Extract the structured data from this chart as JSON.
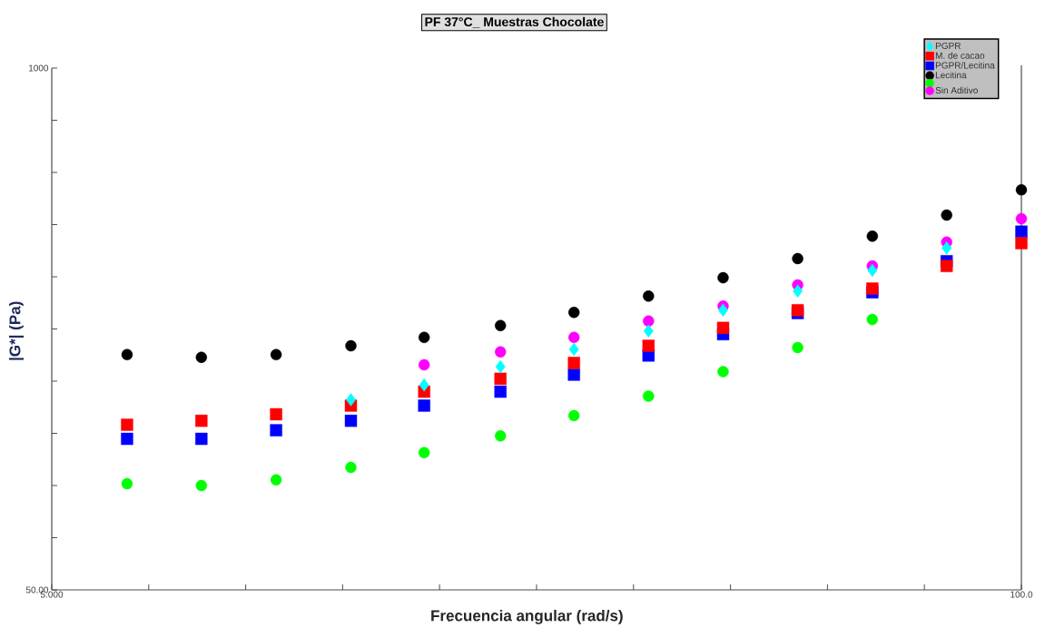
{
  "chart_data": {
    "type": "scatter",
    "title": "PF 37°C_ Muestras Chocolate",
    "xlabel": "Frecuencia angular (rad/s)",
    "ylabel": "|G*| (Pa)",
    "x": [
      6.31,
      7.94,
      10,
      12.6,
      15.8,
      20,
      25.1,
      31.6,
      39.8,
      50.1,
      63.1,
      79.4,
      100
    ],
    "series": [
      {
        "name": "PGPR",
        "color": "#00ffff",
        "marker": "diamond",
        "values": [
          null,
          null,
          null,
          149,
          162,
          180,
          199,
          221,
          249,
          278,
          313,
          356,
          null
        ]
      },
      {
        "name": "M. de cacao",
        "color": "#ff0000",
        "marker": "square",
        "values": [
          129,
          132,
          137,
          144,
          156,
          168,
          184,
          203,
          225,
          249,
          282,
          321,
          366
        ]
      },
      {
        "name": "PGPR/Lecitina",
        "color": "#0000ff",
        "marker": "square",
        "values": [
          119,
          119,
          125,
          132,
          144,
          156,
          172,
          192,
          217,
          245,
          276,
          330,
          391
        ]
      },
      {
        "name": "Lecitina",
        "color": "#000000",
        "marker": "circle",
        "values": [
          193,
          190,
          193,
          203,
          213,
          228,
          246,
          270,
          300,
          335,
          381,
          430,
          497
        ]
      },
      {
        "color": "#00ff00",
        "marker": "circle",
        "values": [
          92,
          91,
          94,
          101,
          110,
          121,
          136,
          152,
          175,
          201,
          236,
          null,
          null
        ]
      },
      {
        "name": "Sin Aditivo",
        "color": "#ff00ff",
        "marker": "circle",
        "values": [
          null,
          null,
          null,
          null,
          182,
          196,
          213,
          234,
          255,
          288,
          321,
          368,
          421
        ]
      }
    ],
    "log": "xy",
    "xlim": [
      5,
      100
    ],
    "xticks": [
      {
        "value": 5,
        "label": "5.000"
      },
      {
        "value": 6.747,
        "label": null
      },
      {
        "value": 9.103,
        "label": null
      },
      {
        "value": 12.28,
        "label": null
      },
      {
        "value": 16.57,
        "label": null
      },
      {
        "value": 22.36,
        "label": null
      },
      {
        "value": 30.17,
        "label": null
      },
      {
        "value": 40.71,
        "label": null
      },
      {
        "value": 54.93,
        "label": null
      },
      {
        "value": 74.11,
        "label": null
      },
      {
        "value": 100,
        "label": "100.0"
      }
    ],
    "ylim": [
      50,
      1000
    ],
    "yticks": [
      {
        "value": 50,
        "label": "50.00"
      },
      {
        "value": 67.47,
        "label": null
      },
      {
        "value": 91.03,
        "label": null
      },
      {
        "value": 122.8,
        "label": null
      },
      {
        "value": 165.7,
        "label": null
      },
      {
        "value": 223.6,
        "label": null
      },
      {
        "value": 301.7,
        "label": null
      },
      {
        "value": 407.1,
        "label": null
      },
      {
        "value": 549.3,
        "label": null
      },
      {
        "value": 741.1,
        "label": null
      },
      {
        "value": 1000,
        "label": "1000"
      }
    ],
    "grid": false,
    "legend": "top right"
  }
}
